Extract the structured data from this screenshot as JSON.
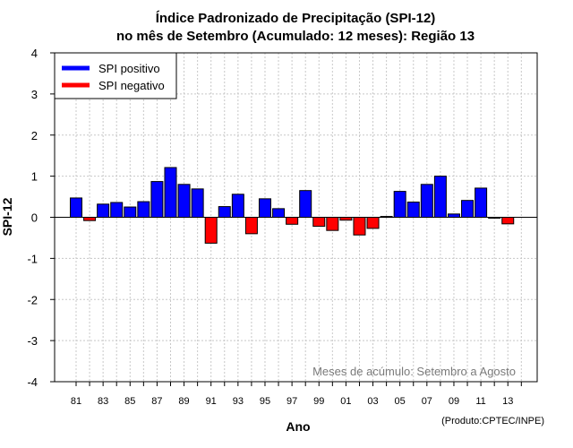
{
  "chart_data": {
    "type": "bar",
    "title_line1": "Índice Padronizado de Precipitação (SPI-12)",
    "title_line2": "no mês de Setembro (Acumulado: 12 meses): Região 13",
    "xlabel": "Ano",
    "ylabel": "SPI-12",
    "ylim": [
      -4,
      4
    ],
    "yticks": [
      -4,
      -3,
      -2,
      -1,
      0,
      1,
      2,
      3,
      4
    ],
    "grid": true,
    "x": [
      1981,
      1982,
      1983,
      1984,
      1985,
      1986,
      1987,
      1988,
      1989,
      1990,
      1991,
      1992,
      1993,
      1994,
      1995,
      1996,
      1997,
      1998,
      1999,
      2000,
      2001,
      2002,
      2003,
      2004,
      2005,
      2006,
      2007,
      2008,
      2009,
      2010,
      2011,
      2012,
      2013
    ],
    "xtick_labels": [
      "81",
      "83",
      "85",
      "87",
      "89",
      "91",
      "93",
      "95",
      "97",
      "99",
      "01",
      "03",
      "05",
      "07",
      "09",
      "11",
      "13"
    ],
    "values": [
      0.47,
      -0.08,
      0.32,
      0.36,
      0.25,
      0.38,
      0.87,
      1.21,
      0.8,
      0.69,
      -0.63,
      0.26,
      0.56,
      -0.4,
      0.45,
      0.21,
      -0.17,
      0.65,
      -0.22,
      -0.32,
      -0.07,
      -0.43,
      -0.27,
      0.02,
      0.63,
      0.37,
      0.8,
      1.0,
      0.08,
      0.41,
      0.71,
      -0.02,
      -0.16
    ],
    "legend": [
      {
        "label": "SPI positivo",
        "color": "#0000ff"
      },
      {
        "label": "SPI negativo",
        "color": "#ff0000"
      }
    ],
    "legend_position": "top-left",
    "annotation": "Meses de acúmulo: Setembro a Agosto",
    "credit": "(Produto:CPTEC/INPE)"
  }
}
